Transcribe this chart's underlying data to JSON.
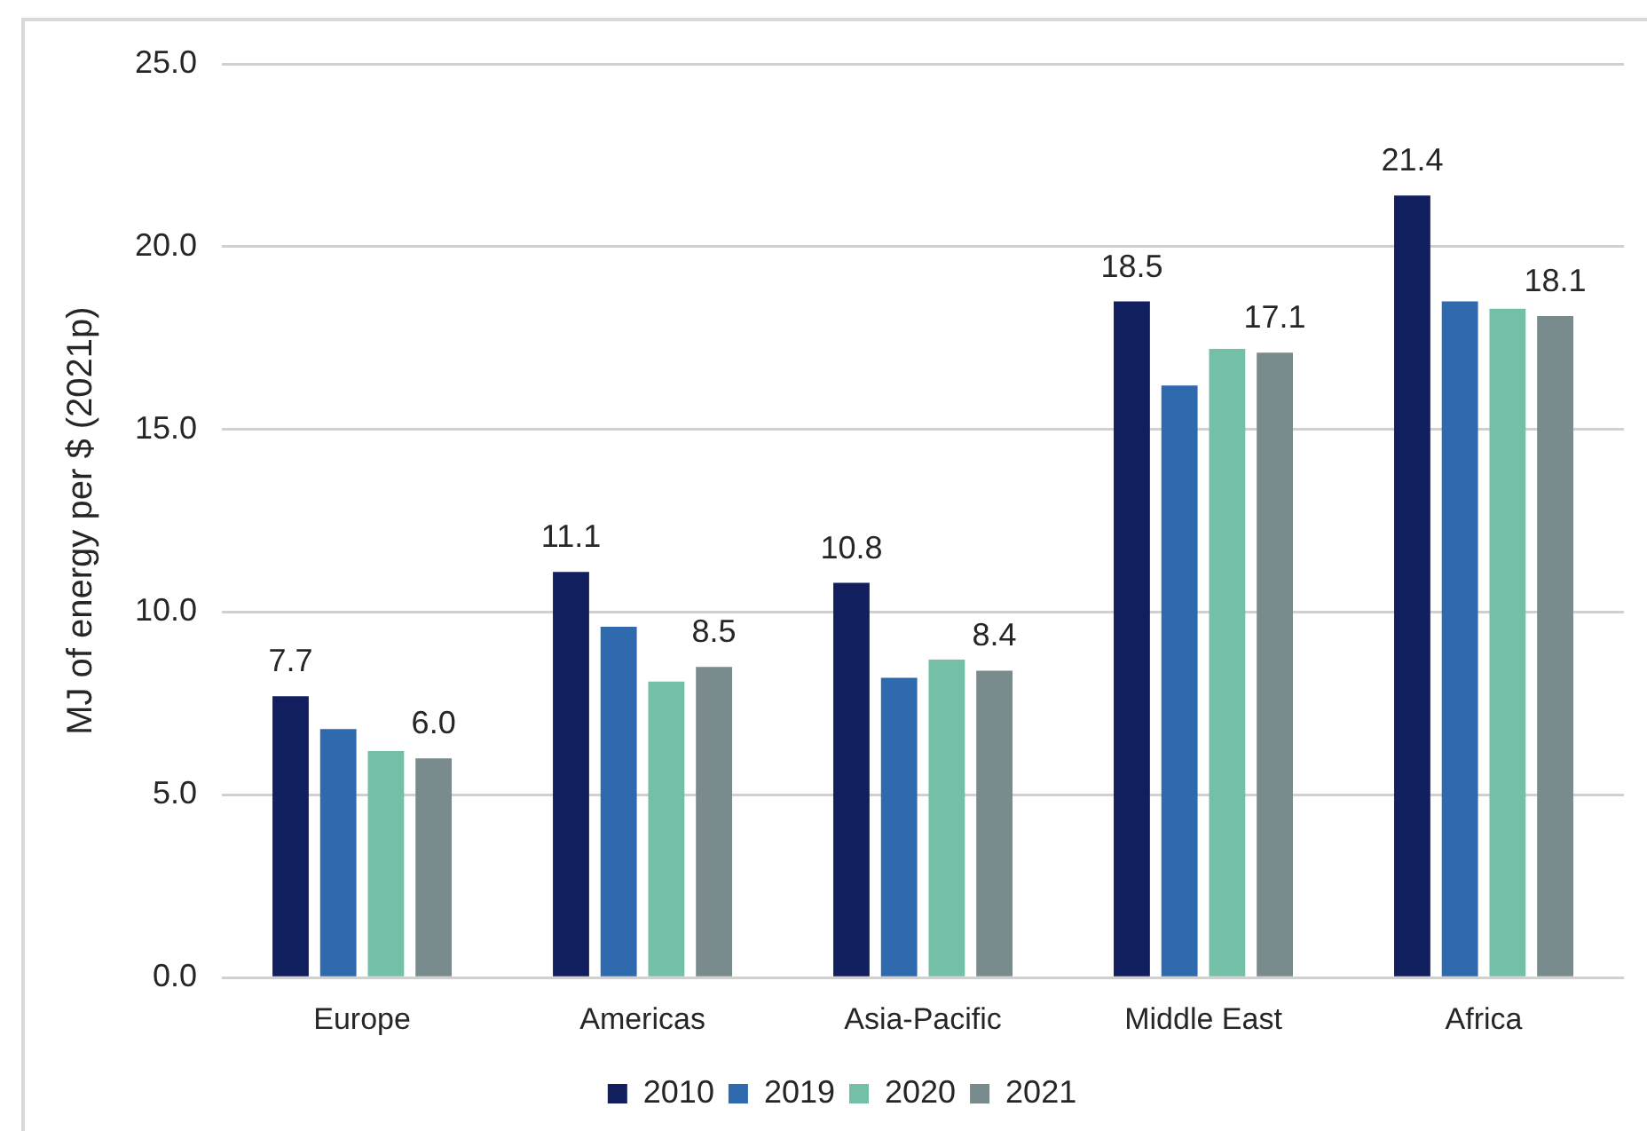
{
  "chart_data": {
    "type": "bar",
    "ylabel": "MJ of energy per $ (2021p)",
    "categories": [
      "Europe",
      "Americas",
      "Asia-Pacific",
      "Middle East",
      "Africa"
    ],
    "series": [
      {
        "name": "2010",
        "color": "#121f5e",
        "values": [
          7.7,
          11.1,
          10.8,
          18.5,
          21.4
        ],
        "value_labels": [
          "7.7",
          "11.1",
          "10.8",
          "18.5",
          "21.4"
        ]
      },
      {
        "name": "2019",
        "color": "#2e6aad",
        "values": [
          6.8,
          9.6,
          8.2,
          16.2,
          18.5
        ]
      },
      {
        "name": "2020",
        "color": "#74bfa7",
        "values": [
          6.2,
          8.1,
          8.7,
          17.2,
          18.3
        ]
      },
      {
        "name": "2021",
        "color": "#7a8b8d",
        "values": [
          6.0,
          8.5,
          8.4,
          17.1,
          18.1
        ],
        "value_labels": [
          "6.0",
          "8.5",
          "8.4",
          "17.1",
          "18.1"
        ]
      }
    ],
    "ylim": [
      0,
      25
    ],
    "yticks": [
      {
        "value": 0,
        "label": "0.0"
      },
      {
        "value": 5,
        "label": "5.0"
      },
      {
        "value": 10,
        "label": "10.0"
      },
      {
        "value": 15,
        "label": "15.0"
      },
      {
        "value": 20,
        "label": "20.0"
      },
      {
        "value": 25,
        "label": "25.0"
      }
    ],
    "grid": "y",
    "legend": "bottom"
  }
}
